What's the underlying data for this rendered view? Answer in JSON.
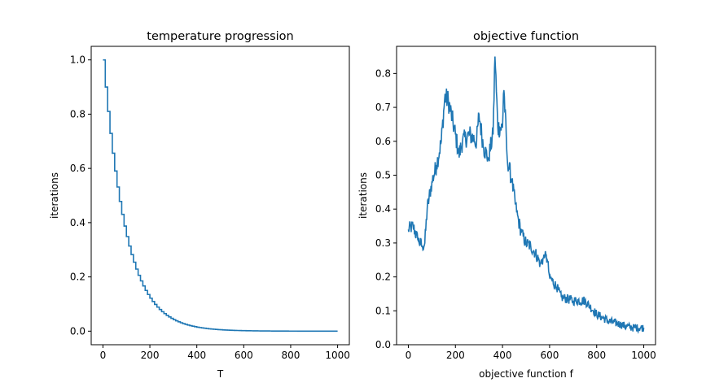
{
  "chart_data": [
    {
      "type": "line",
      "title": "temperature progression",
      "xlabel": "T",
      "ylabel": "iterations",
      "xlim": [
        -50,
        1050
      ],
      "ylim": [
        -0.05,
        1.05
      ],
      "xticks": [
        0,
        200,
        400,
        600,
        800,
        1000
      ],
      "yticks": [
        0.0,
        0.2,
        0.4,
        0.6,
        0.8,
        1.0
      ],
      "ytick_labels": [
        "0.0",
        "0.2",
        "0.4",
        "0.6",
        "0.8",
        "1.0"
      ],
      "grid": false,
      "color": "#1f77b4",
      "series": [
        {
          "style": "step",
          "step_every": 10,
          "decay_factor": 0.9,
          "x_range": [
            0,
            1000
          ],
          "x": [
            0,
            10,
            20,
            30,
            40,
            50,
            60,
            70,
            80,
            90,
            100,
            150,
            200,
            300,
            400,
            500,
            600,
            800,
            1000
          ],
          "y": [
            1.0,
            0.9,
            0.81,
            0.729,
            0.656,
            0.59,
            0.531,
            0.478,
            0.43,
            0.387,
            0.349,
            0.206,
            0.122,
            0.042,
            0.015,
            0.005,
            0.002,
            0.0002,
            0.0
          ]
        }
      ]
    },
    {
      "type": "line",
      "title": "objective function",
      "xlabel": "objective function f",
      "ylabel": "iterations",
      "xlim": [
        -50,
        1050
      ],
      "ylim": [
        0.0,
        0.88
      ],
      "xticks": [
        0,
        200,
        400,
        600,
        800,
        1000
      ],
      "yticks": [
        0.0,
        0.1,
        0.2,
        0.3,
        0.4,
        0.5,
        0.6,
        0.7,
        0.8
      ],
      "ytick_labels": [
        "0.0",
        "0.1",
        "0.2",
        "0.3",
        "0.4",
        "0.5",
        "0.6",
        "0.7",
        "0.8"
      ],
      "grid": false,
      "color": "#1f77b4",
      "series": [
        {
          "style": "noisy",
          "x": [
            0,
            20,
            40,
            60,
            70,
            80,
            100,
            120,
            140,
            155,
            170,
            200,
            215,
            230,
            260,
            290,
            300,
            320,
            340,
            360,
            368,
            380,
            400,
            405,
            420,
            440,
            460,
            480,
            500,
            520,
            540,
            560,
            580,
            590,
            600,
            630,
            650,
            700,
            750,
            800,
            850,
            900,
            950,
            1000
          ],
          "y": [
            0.34,
            0.35,
            0.31,
            0.29,
            0.3,
            0.4,
            0.48,
            0.53,
            0.6,
            0.73,
            0.72,
            0.62,
            0.56,
            0.6,
            0.62,
            0.6,
            0.68,
            0.58,
            0.55,
            0.62,
            0.85,
            0.64,
            0.64,
            0.77,
            0.55,
            0.48,
            0.39,
            0.33,
            0.3,
            0.29,
            0.27,
            0.24,
            0.26,
            0.25,
            0.2,
            0.17,
            0.14,
            0.13,
            0.13,
            0.09,
            0.07,
            0.06,
            0.05,
            0.05
          ],
          "noise": 0.02
        }
      ]
    }
  ]
}
